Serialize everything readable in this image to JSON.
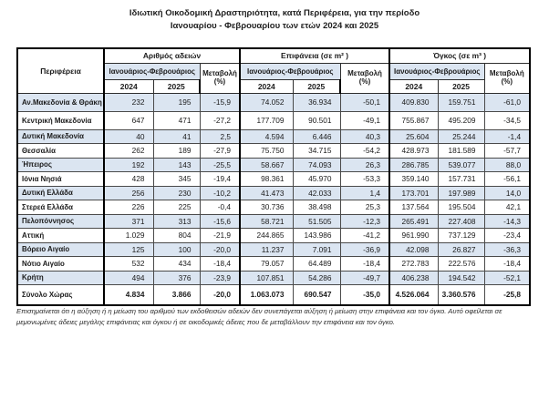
{
  "title": {
    "line1": "Ιδιωτική  Οικοδομική Δραστηριότητα, κατά Περιφέρεια, για την περίοδο",
    "line2": "Ιανουαρίου - Φεβρουαρίου των ετών 2024 και 2025"
  },
  "table": {
    "region_header": "Περιφέρεια",
    "sections": [
      {
        "label": "Αριθμός αδειών"
      },
      {
        "label": "Επιφάνεια (σε m² )"
      },
      {
        "label": "Όγκος (σε m³ )"
      }
    ],
    "period_header": "Ιανουάριος-Φεβρουάριος",
    "change_label": "Μεταβολή",
    "change_unit": "(%)",
    "years": [
      "2024",
      "2025"
    ],
    "rows": [
      {
        "region": "Αν.Μακεδονία & Θράκη",
        "values": [
          "232",
          "195",
          "-15,9",
          "74.052",
          "36.934",
          "-50,1",
          "409.830",
          "159.751",
          "-61,0"
        ]
      },
      {
        "region": "Κεντρική Μακεδονία",
        "values": [
          "647",
          "471",
          "-27,2",
          "177.709",
          "90.501",
          "-49,1",
          "755.867",
          "495.209",
          "-34,5"
        ]
      },
      {
        "region": "Δυτική Μακεδονία",
        "values": [
          "40",
          "41",
          "2,5",
          "4.594",
          "6.446",
          "40,3",
          "25.604",
          "25.244",
          "-1,4"
        ]
      },
      {
        "region": "Θεσσαλία",
        "values": [
          "262",
          "189",
          "-27,9",
          "75.750",
          "34.715",
          "-54,2",
          "428.973",
          "181.589",
          "-57,7"
        ]
      },
      {
        "region": "Ήπειρος",
        "values": [
          "192",
          "143",
          "-25,5",
          "58.667",
          "74.093",
          "26,3",
          "286.785",
          "539.077",
          "88,0"
        ]
      },
      {
        "region": "Ιόνια Νησιά",
        "values": [
          "428",
          "345",
          "-19,4",
          "98.361",
          "45.970",
          "-53,3",
          "359.140",
          "157.731",
          "-56,1"
        ]
      },
      {
        "region": "Δυτική Ελλάδα",
        "values": [
          "256",
          "230",
          "-10,2",
          "41.473",
          "42.033",
          "1,4",
          "173.701",
          "197.989",
          "14,0"
        ]
      },
      {
        "region": "Στερεά Ελλάδα",
        "values": [
          "226",
          "225",
          "-0,4",
          "30.736",
          "38.498",
          "25,3",
          "137.564",
          "195.504",
          "42,1"
        ]
      },
      {
        "region": "Πελοπόννησος",
        "values": [
          "371",
          "313",
          "-15,6",
          "58.721",
          "51.505",
          "-12,3",
          "265.491",
          "227.408",
          "-14,3"
        ]
      },
      {
        "region": "Αττική",
        "values": [
          "1.029",
          "804",
          "-21,9",
          "244.865",
          "143.986",
          "-41,2",
          "961.990",
          "737.129",
          "-23,4"
        ]
      },
      {
        "region": "Βόρειο Αιγαίο",
        "values": [
          "125",
          "100",
          "-20,0",
          "11.237",
          "7.091",
          "-36,9",
          "42.098",
          "26.827",
          "-36,3"
        ]
      },
      {
        "region": "Νότιο Αιγαίο",
        "values": [
          "532",
          "434",
          "-18,4",
          "79.057",
          "64.489",
          "-18,4",
          "272.783",
          "222.576",
          "-18,4"
        ]
      },
      {
        "region": "Κρήτη",
        "values": [
          "494",
          "376",
          "-23,9",
          "107.851",
          "54.286",
          "-49,7",
          "406.238",
          "194.542",
          "-52,1"
        ]
      }
    ],
    "total_row": {
      "region": "Σύνολο Χώρας",
      "values": [
        "4.834",
        "3.866",
        "-20,0",
        "1.063.073",
        "690.547",
        "-35,0",
        "4.526.064",
        "3.360.576",
        "-25,8"
      ]
    }
  },
  "footnote": "Επισημαίνεται ότι η αύξηση ή η μείωση του αριθμού των εκδοθεισών αδειών δεν συνεπάγεται αύξηση ή μείωση στην επιφάνεια και τον όγκο. Αυτό οφείλεται σε μεμονωμένες άδειες μεγάλης επιφάνειας και όγκου ή σε οικοδομικές άδειες που δε μεταβάλλουν την επιφάνεια και τον όγκο.",
  "shaded_color": "#dbe5f1"
}
